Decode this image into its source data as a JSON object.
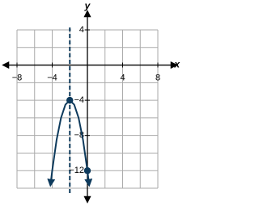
{
  "chart_data": {
    "type": "line",
    "x_label": "x",
    "y_label": "y",
    "xlim": [
      -8,
      8
    ],
    "ylim": [
      -14,
      4
    ],
    "xticks": [
      {
        "value": -8,
        "label": "−8"
      },
      {
        "value": -4,
        "label": "−4"
      },
      4,
      8
    ],
    "yticks": [
      4,
      {
        "value": -4,
        "label": "−4"
      },
      {
        "value": -8,
        "label": "−8"
      },
      {
        "value": -12,
        "label": "−12"
      }
    ],
    "xgrid": [
      -8,
      -6,
      -4,
      -2,
      0,
      2,
      4,
      6,
      8
    ],
    "ygrid": [
      4,
      2,
      0,
      -2,
      -4,
      -6,
      -8,
      -10,
      -12,
      -14
    ],
    "grid": true,
    "series": [
      {
        "color": "#0d3a5c",
        "x": [
          -4.2,
          -4,
          -3.5,
          -3,
          -2.5,
          -2,
          -1.5,
          -1,
          -0.5,
          0,
          0.2
        ],
        "values": [
          -13.68,
          -12,
          -8.5,
          -6,
          -4.5,
          -4,
          -4.5,
          -6,
          -8.5,
          -12,
          -13.68
        ]
      }
    ],
    "points": [
      {
        "x": -2,
        "y": -4
      },
      {
        "x": 0,
        "y": -12
      }
    ],
    "symmetry_line": {
      "x": -2,
      "color": "#0d3a5c",
      "style": "dashed"
    }
  }
}
